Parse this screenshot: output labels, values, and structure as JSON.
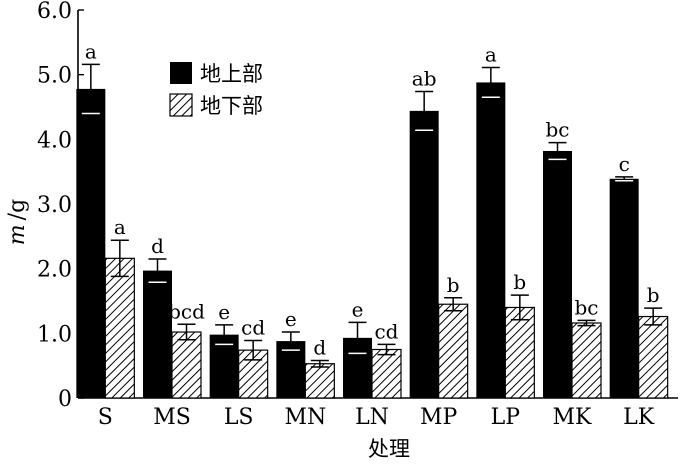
{
  "chart_data": {
    "type": "bar",
    "categories": [
      "S",
      "MS",
      "LS",
      "MN",
      "LN",
      "MP",
      "LP",
      "MK",
      "LK"
    ],
    "series": [
      {
        "name": "地上部",
        "fill": "solid-black",
        "values": [
          4.78,
          1.97,
          0.98,
          0.88,
          0.93,
          4.44,
          4.88,
          3.82,
          3.39
        ],
        "errors": [
          0.38,
          0.18,
          0.15,
          0.14,
          0.24,
          0.3,
          0.23,
          0.13,
          0.03
        ],
        "labels": [
          "a",
          "d",
          "e",
          "e",
          "e",
          "ab",
          "a",
          "bc",
          "c"
        ]
      },
      {
        "name": "地下部",
        "fill": "hatched",
        "values": [
          2.16,
          1.02,
          0.74,
          0.53,
          0.75,
          1.45,
          1.4,
          1.16,
          1.26
        ],
        "errors": [
          0.28,
          0.12,
          0.15,
          0.05,
          0.08,
          0.1,
          0.19,
          0.04,
          0.13
        ],
        "labels": [
          "a",
          "bcd",
          "cd",
          "d",
          "cd",
          "b",
          "b",
          "bc",
          "b"
        ]
      }
    ],
    "ylabel_italic": "m",
    "ylabel_unit": "/g",
    "xlabel": "处理",
    "ylim": [
      0,
      6.0
    ],
    "yticks": [
      "0",
      "1.0",
      "2.0",
      "3.0",
      "4.0",
      "5.0",
      "6.0"
    ],
    "legend_placement": "top-left",
    "grid": false
  }
}
